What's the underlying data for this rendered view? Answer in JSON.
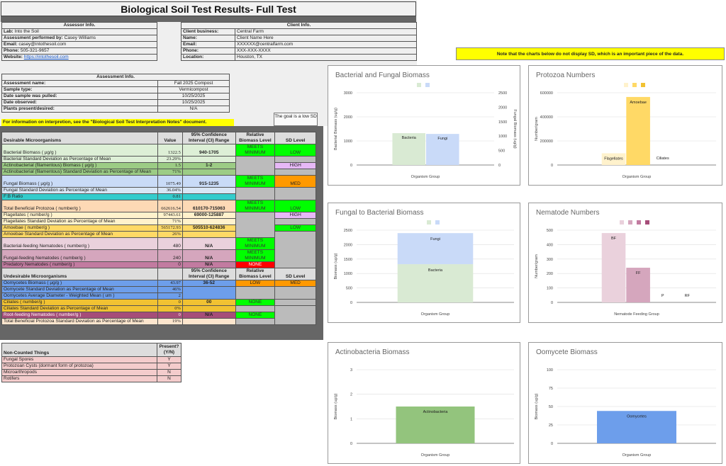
{
  "title": "Biological Soil Test Results- Full Test",
  "assessor": {
    "header": "Assessor Info.",
    "rows": [
      {
        "label": "Lab:",
        "value": "Into the Soil"
      },
      {
        "label": "Assessment performed by:",
        "value": "Casey Williams"
      },
      {
        "label": "Email:",
        "value": "casey@intothesoil.com"
      },
      {
        "label": "Phone:",
        "value": "505-321-9657"
      },
      {
        "label": "Website:",
        "value": "https://intothesoil.com"
      }
    ]
  },
  "client": {
    "header": "Client Info.",
    "rows": [
      {
        "label": "Client business:",
        "value": "Central Farm"
      },
      {
        "label": "Name:",
        "value": "Client Name Here"
      },
      {
        "label": "Email:",
        "value": "XXXXXX@centralfarm.com"
      },
      {
        "label": "Phone:",
        "value": "XXX-XXX-XXXX"
      },
      {
        "label": "Location:",
        "value": "Houston, TX"
      }
    ]
  },
  "assessment": {
    "header": "Assessment Info.",
    "rows": [
      {
        "label": "Assessment name:",
        "value": "Fall 2025 Compost"
      },
      {
        "label": "Sample type:",
        "value": "Vermicompost"
      },
      {
        "label": "Date sample was pulled:",
        "value": "10/25/2025"
      },
      {
        "label": "Date observed:",
        "value": "10/25/2025"
      },
      {
        "label": "Plants present/desired:",
        "value": "N/A"
      }
    ]
  },
  "interpretation_note": "For information on interpretion, see the \"Biological Soil Test Interpretation Notes\" document.",
  "goal_note": "The goal is a low SD",
  "charts_note": "Note that the charts below do not display SD, which is an important piece of the data.",
  "desirable": {
    "headers": [
      "Desirable Microorganisms",
      "Value",
      "95% Confidence Interval (CI) Range",
      "Relative Biomass Level",
      "SD Level"
    ],
    "rows": [
      {
        "name": "Bacterial Biomass ( µg/g )",
        "value": "1322.5",
        "ci": "940-1705",
        "level": "MEETS MINIMUM",
        "sd": "LOW"
      },
      {
        "name": "Bacterial Standard Deviation as Percentage of Mean",
        "value": "23.29%"
      },
      {
        "name": "Actinobacterial (filamentous) Biomass ( µg/g )",
        "value": "1.5",
        "ci": "1-2",
        "sd": "HIGH"
      },
      {
        "name": "Actinobacterial (filamentous) Standard Deviation as Percentage of Mean",
        "value": "71%"
      },
      {
        "name": "Fungal Biomass ( µg/g )",
        "value": "1075.49",
        "ci": "915-1235",
        "level": "MEETS MINIMUM",
        "sd": "MED"
      },
      {
        "name": "Fungal Standard Deviation as Percentage of Mean",
        "value": "36.04%"
      },
      {
        "name": "F:B Ratio",
        "value": "0.81"
      },
      {
        "name": "Total Beneficial Protozoa ( number/g )",
        "value": "662616.54",
        "ci": "610170-715063",
        "level": "MEETS MINIMUM",
        "sd": "LOW"
      },
      {
        "name": "Flagellates ( number/g )",
        "value": "97443.61",
        "ci": "69000-125887",
        "sd": "HIGH"
      },
      {
        "name": "Flagellates Standard Deviation as Percentage of Mean",
        "value": "71%"
      },
      {
        "name": "Amoebae ( number/g )",
        "value": "565172.93",
        "ci": "505510-624836",
        "sd": "LOW"
      },
      {
        "name": "Amoebae Standard Deviation as Percentage of Mean",
        "value": "26%"
      },
      {
        "name": "Bacterial-feeding Nematodes ( number/g )",
        "value": "480",
        "ci": "N/A",
        "level": "MEETS MINIMUM"
      },
      {
        "name": "Fungal-feeding Nematodes ( number/g )",
        "value": "240",
        "ci": "N/A",
        "level": "MEETS MINIMUM"
      },
      {
        "name": "Predatory Nematodes ( number/g )",
        "value": "0",
        "ci": "N/A",
        "level": "NONE"
      }
    ]
  },
  "undesirable": {
    "headers": [
      "Undesirable Microorganisms",
      "",
      "95% Confidence Interval (CI) Range",
      "Relative Biomass Level",
      "SD Level"
    ],
    "rows": [
      {
        "name": "Oomycetes Biomass ( µg/g )",
        "value": "43.97",
        "ci": "36-52",
        "level": "LOW",
        "sd": "MED"
      },
      {
        "name": "Oomycete Standard Deviation as Percentage of Mean",
        "value": "46%"
      },
      {
        "name": "Oomycetes Average Diameter - Weighted Mean ( um )",
        "value": "2"
      },
      {
        "name": "Ciliates ( number/g )",
        "value": "0",
        "ci": "00",
        "level": "NONE"
      },
      {
        "name": "Ciliates Standard Deviation as Percentage of Mean",
        "value": "0%"
      },
      {
        "name": "Root-feeding Nematodes ( number/g )",
        "value": "0",
        "ci": "N/A",
        "level": "NONE"
      },
      {
        "name": "Total Beneficial Protozoa Standard Deviation as Percentage of Mean",
        "value": "19%"
      }
    ]
  },
  "non_counted": {
    "headers": [
      "Non-Counted Things",
      "Present? (Y/N)"
    ],
    "rows": [
      {
        "name": "Fungal Spores",
        "value": "Y"
      },
      {
        "name": "Protozoan Cysts (dormant form of protozoa)",
        "value": "Y"
      },
      {
        "name": "Microarthropods",
        "value": "N"
      },
      {
        "name": "Rotifers",
        "value": "N"
      }
    ]
  },
  "chart_data": [
    {
      "type": "bar",
      "title": "Bacterial and Fungal Biomass",
      "categories": [
        "Bacteria",
        "Fungi"
      ],
      "values": [
        1322.5,
        1075.49
      ],
      "xlabel": "Organism Group",
      "ylabel": "Bacterial Biomass (ug/g)",
      "y2label": "Fungal Biomass (ug/g)",
      "ylim": [
        0,
        3000
      ],
      "y2lim": [
        0,
        2500
      ],
      "yticks": [
        0,
        1000,
        2000,
        3000
      ],
      "y2ticks": [
        0,
        500,
        1000,
        1500,
        2000,
        2500
      ],
      "colors": [
        "#d9ead3",
        "#c9daf8"
      ]
    },
    {
      "type": "bar",
      "title": "Protozoa Numbers",
      "categories": [
        "Flagellates",
        "Amoebae",
        "Ciliates"
      ],
      "values": [
        97443.61,
        565172.93,
        0
      ],
      "xlabel": "Organism Group",
      "ylabel": "Number/gram",
      "ylim": [
        0,
        600000
      ],
      "yticks": [
        0,
        200000,
        400000,
        600000
      ],
      "colors": [
        "#fff2cc",
        "#ffd966",
        "#f1c232"
      ]
    },
    {
      "type": "bar",
      "title": "Fungal to Bacterial Biomass",
      "stacked": true,
      "categories": [
        "Organism Group"
      ],
      "series": [
        {
          "name": "Bacteria",
          "values": [
            1322.5
          ]
        },
        {
          "name": "Fungi",
          "values": [
            1075.49
          ]
        }
      ],
      "xlabel": "Organism Group",
      "ylabel": "Biomass (ug/g)",
      "ylim": [
        0,
        2500
      ],
      "yticks": [
        0,
        500,
        1000,
        1500,
        2000,
        2500
      ],
      "colors": [
        "#d9ead3",
        "#c9daf8"
      ]
    },
    {
      "type": "bar",
      "title": "Nematode Numbers",
      "categories": [
        "BF",
        "FF",
        "P",
        "RF"
      ],
      "values": [
        480,
        240,
        0,
        0
      ],
      "xlabel": "Nematode Feeding Group",
      "ylabel": "Number/gram",
      "ylim": [
        0,
        500
      ],
      "yticks": [
        0,
        100,
        200,
        300,
        400,
        500
      ],
      "colors": [
        "#ead1dc",
        "#d5a6bd",
        "#c27ba0",
        "#a64d79"
      ]
    },
    {
      "type": "bar",
      "title": "Actinobacteria Biomass",
      "categories": [
        "Actinobacteria"
      ],
      "values": [
        1.5
      ],
      "xlabel": "Organism Group",
      "ylabel": "Biomass (ug/g)",
      "ylim": [
        0,
        3
      ],
      "yticks": [
        0,
        1,
        2,
        3
      ],
      "colors": [
        "#93c47d"
      ]
    },
    {
      "type": "bar",
      "title": "Oomycete Biomass",
      "categories": [
        "Oomycetes"
      ],
      "values": [
        43.97
      ],
      "xlabel": "Organism Group",
      "ylabel": "Biomass (ug/g)",
      "ylim": [
        0,
        100
      ],
      "yticks": [
        0,
        25,
        50,
        75,
        100
      ],
      "colors": [
        "#6d9eeb"
      ]
    }
  ]
}
